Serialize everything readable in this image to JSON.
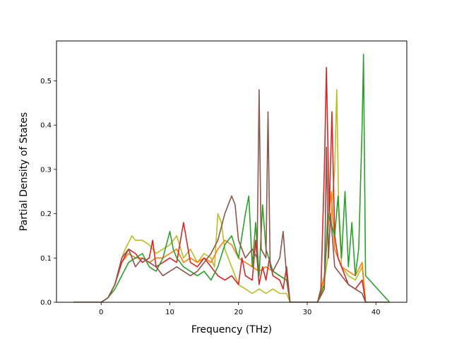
{
  "chart_data": {
    "type": "line",
    "title": "",
    "xlabel": "Frequency (THz)",
    "ylabel": "Partial Density of States",
    "xlim": [
      -6.5,
      44.5
    ],
    "ylim": [
      0,
      0.59
    ],
    "xticks": [
      0,
      10,
      20,
      30,
      40
    ],
    "yticks": [
      0.0,
      0.1,
      0.2,
      0.3,
      0.4,
      0.5
    ],
    "xtick_labels": [
      "0",
      "10",
      "20",
      "30",
      "40"
    ],
    "ytick_labels": [
      "0.0",
      "0.1",
      "0.2",
      "0.3",
      "0.4",
      "0.5"
    ],
    "grid": false,
    "legend": "none",
    "series": [
      {
        "color": "#bcbd22",
        "x": [
          -4,
          0,
          1,
          2,
          3,
          3.5,
          4.5,
          5,
          6,
          7,
          8,
          9,
          10,
          11,
          12,
          13,
          14,
          15,
          16,
          16.5,
          17,
          17.5,
          18,
          19,
          20,
          21,
          22,
          23,
          24,
          25,
          26,
          27,
          27.5,
          31.5,
          32.5,
          33,
          33.5,
          34,
          34.3,
          34.6,
          35,
          36,
          37,
          38,
          38.5,
          42
        ],
        "y": [
          0,
          0,
          0.01,
          0.04,
          0.1,
          0.12,
          0.15,
          0.14,
          0.14,
          0.13,
          0.11,
          0.12,
          0.13,
          0.15,
          0.1,
          0.12,
          0.09,
          0.11,
          0.1,
          0.08,
          0.2,
          0.18,
          0.12,
          0.08,
          0.04,
          0.03,
          0.02,
          0.03,
          0.02,
          0.03,
          0.02,
          0.02,
          0,
          0,
          0.05,
          0.1,
          0.2,
          0.3,
          0.48,
          0.2,
          0.08,
          0.06,
          0.05,
          0.08,
          0.0,
          0
        ]
      },
      {
        "color": "#ff7f0e",
        "x": [
          -4,
          0,
          1,
          2,
          3,
          4,
          5,
          6,
          7,
          8,
          9,
          10,
          11,
          12,
          13,
          14,
          15,
          16,
          17,
          18,
          19,
          20,
          21,
          22,
          23,
          24,
          25,
          26,
          27,
          27.5,
          31.5,
          32.5,
          33,
          33.5,
          34,
          35,
          36,
          37,
          38,
          38.5,
          42
        ],
        "y": [
          0,
          0,
          0.01,
          0.04,
          0.09,
          0.11,
          0.1,
          0.1,
          0.09,
          0.1,
          0.1,
          0.11,
          0.12,
          0.09,
          0.1,
          0.09,
          0.1,
          0.09,
          0.12,
          0.14,
          0.13,
          0.1,
          0.09,
          0.08,
          0.07,
          0.08,
          0.07,
          0.06,
          0.05,
          0,
          0,
          0.06,
          0.16,
          0.25,
          0.12,
          0.08,
          0.07,
          0.06,
          0.09,
          0.0,
          0
        ]
      },
      {
        "color": "#d62728",
        "x": [
          -4,
          0,
          1,
          2,
          3,
          4,
          5,
          6,
          7,
          7.5,
          8,
          9,
          10,
          11,
          12,
          13,
          14,
          15,
          16,
          17,
          18,
          19,
          20,
          20.5,
          21,
          22,
          22.5,
          23,
          23.5,
          24,
          24.5,
          25,
          26,
          26.5,
          27,
          27.5,
          31.5,
          32,
          32.5,
          32.8,
          33.2,
          33.6,
          34,
          34.5,
          35,
          36,
          37,
          38,
          38.5,
          42
        ],
        "y": [
          0,
          0,
          0.01,
          0.04,
          0.09,
          0.12,
          0.11,
          0.09,
          0.1,
          0.14,
          0.08,
          0.09,
          0.1,
          0.09,
          0.18,
          0.09,
          0.08,
          0.1,
          0.08,
          0.06,
          0.05,
          0.06,
          0.04,
          0.1,
          0.06,
          0.05,
          0.14,
          0.04,
          0.08,
          0.05,
          0.1,
          0.06,
          0.05,
          0.03,
          0.08,
          0,
          0,
          0.03,
          0.3,
          0.53,
          0.2,
          0.43,
          0.15,
          0.1,
          0.08,
          0.04,
          0.03,
          0.05,
          0.0,
          0
        ]
      },
      {
        "color": "#2ca02c",
        "x": [
          -4,
          0,
          1,
          2,
          3,
          4,
          5,
          6,
          7,
          8,
          9,
          10,
          10.5,
          11,
          12,
          13,
          14,
          15,
          16,
          17,
          18,
          19,
          20,
          21,
          21.5,
          22,
          22.5,
          23,
          23.5,
          24,
          25,
          26,
          27,
          27.5,
          31.5,
          32.5,
          33,
          34,
          34.5,
          35,
          35.5,
          36,
          36.5,
          37,
          37.5,
          38,
          38.2,
          38.5,
          42
        ],
        "y": [
          0,
          0,
          0.01,
          0.03,
          0.06,
          0.09,
          0.1,
          0.11,
          0.08,
          0.07,
          0.1,
          0.16,
          0.12,
          0.1,
          0.08,
          0.07,
          0.06,
          0.07,
          0.05,
          0.08,
          0.13,
          0.15,
          0.1,
          0.2,
          0.24,
          0.08,
          0.18,
          0.06,
          0.22,
          0.12,
          0.07,
          0.06,
          0.05,
          0,
          0,
          0.04,
          0.2,
          0.15,
          0.24,
          0.1,
          0.25,
          0.08,
          0.18,
          0.06,
          0.12,
          0.4,
          0.56,
          0.06,
          0
        ]
      },
      {
        "color": "#8c564b",
        "x": [
          -4,
          0,
          1,
          2,
          3,
          4,
          5,
          6,
          7,
          8,
          9,
          10,
          11,
          12,
          13,
          14,
          15,
          16,
          17,
          18,
          19,
          19.5,
          20,
          21,
          22,
          22.7,
          23,
          23.3,
          24,
          24.3,
          24.6,
          25,
          26,
          26.5,
          27,
          27.5,
          31.5,
          32.5,
          32.8,
          33.1,
          33.4,
          34,
          35,
          36,
          37,
          38,
          38.5,
          42
        ],
        "y": [
          0,
          0,
          0.01,
          0.04,
          0.1,
          0.12,
          0.08,
          0.1,
          0.09,
          0.08,
          0.06,
          0.07,
          0.08,
          0.07,
          0.06,
          0.07,
          0.09,
          0.11,
          0.14,
          0.2,
          0.24,
          0.22,
          0.14,
          0.1,
          0.12,
          0.1,
          0.48,
          0.12,
          0.1,
          0.43,
          0.08,
          0.07,
          0.1,
          0.16,
          0.06,
          0,
          0,
          0.03,
          0.35,
          0.1,
          0.2,
          0.08,
          0.06,
          0.04,
          0.03,
          0.02,
          0.0,
          0
        ]
      }
    ]
  }
}
